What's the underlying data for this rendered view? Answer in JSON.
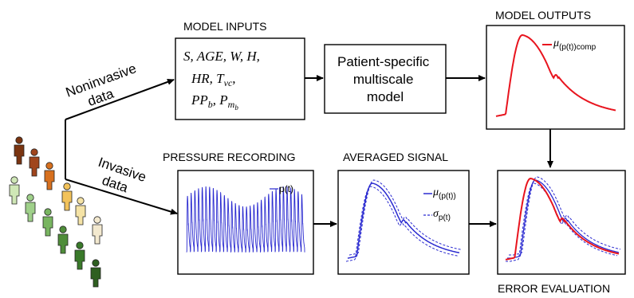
{
  "labels": {
    "model_inputs": "MODEL INPUTS",
    "model_outputs": "MODEL OUTPUTS",
    "pressure_recording": "PRESSURE RECORDING",
    "averaged_signal": "AVERAGED SIGNAL",
    "error_evaluation": "ERROR EVALUATION",
    "noninvasive_line1": "Noninvasive",
    "noninvasive_line2": "data",
    "invasive_line1": "Invasive",
    "invasive_line2": "data",
    "model_line1": "Patient-specific",
    "model_line2": "multiscale",
    "model_line3": "model"
  },
  "inputs": {
    "line1": "S, AGE, W, H,",
    "line2_a": "HR, T",
    "line2_sub": "vc",
    "line2_b": ",",
    "line3_a": "PP",
    "line3_sub": "b",
    "line3_b": ", P",
    "line3_sub2": "m",
    "line3_subsub": "b"
  },
  "legends": {
    "comp_mu": "μ",
    "comp_sub": "(p(t))comp",
    "recording": "p(t)",
    "avg_mu": "μ",
    "avg_mu_sub": "(p(t))",
    "avg_sigma": "σ",
    "avg_sigma_sub": "p(t)"
  },
  "colors": {
    "model_red": "#e8141e",
    "measured_blue": "#2a2ad0",
    "arrow": "#000000",
    "people": [
      "#7a3410",
      "#a0451c",
      "#d7701e",
      "#f2c25a",
      "#f5e3a6",
      "#f3e9cf",
      "#cfe7b6",
      "#9fd08a",
      "#78b560",
      "#4f8d3a",
      "#3a7a2a",
      "#2f5f20"
    ]
  },
  "icons": [
    "person-icon"
  ]
}
